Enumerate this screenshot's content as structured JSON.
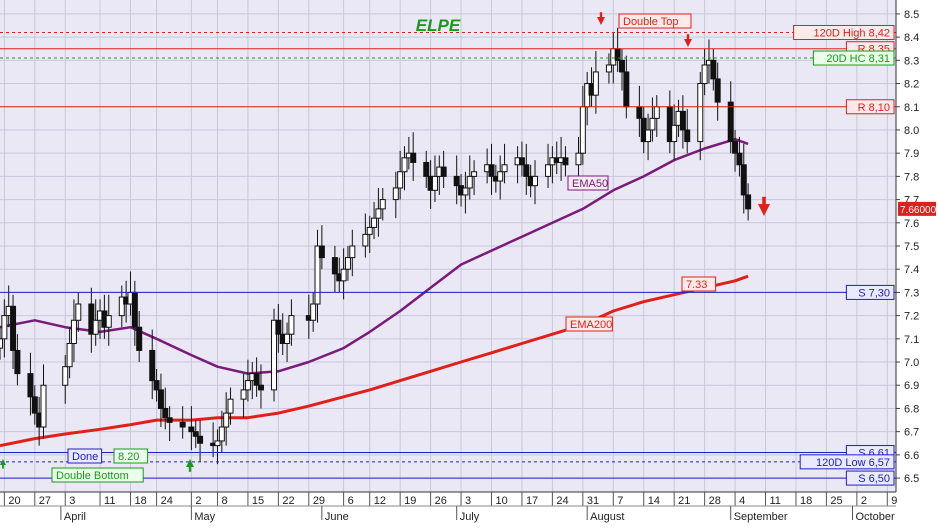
{
  "chart_data": {
    "type": "candlestick",
    "title": "ELPE",
    "ylim": [
      6.44,
      8.56
    ],
    "y_ticks": [
      6.5,
      6.6,
      6.7,
      6.8,
      6.9,
      7.0,
      7.1,
      7.2,
      7.3,
      7.4,
      7.5,
      7.6,
      7.7,
      7.8,
      7.9,
      8.0,
      8.1,
      8.2,
      8.3,
      8.4,
      8.5
    ],
    "y_tick_labels": [
      "6.5",
      "6.6",
      "6.7",
      "6.8",
      "6.9",
      "7.0",
      "7.1",
      "7.2",
      "7.3",
      "7.4",
      "7.5",
      "7.6",
      "7.7",
      "7.8",
      "7.9",
      "8.0",
      "8.1",
      "8.2",
      "8.3",
      "8.4",
      "8.5"
    ],
    "date_ticks": [
      {
        "d": "2018-03-20",
        "label": "20"
      },
      {
        "d": "2018-03-27",
        "label": "27"
      },
      {
        "d": "2018-04-03",
        "label": "3"
      },
      {
        "d": "2018-04-11",
        "label": "11"
      },
      {
        "d": "2018-04-18",
        "label": "18"
      },
      {
        "d": "2018-04-24",
        "label": "24"
      },
      {
        "d": "2018-05-02",
        "label": "2"
      },
      {
        "d": "2018-05-08",
        "label": "8"
      },
      {
        "d": "2018-05-15",
        "label": "15"
      },
      {
        "d": "2018-05-22",
        "label": "22"
      },
      {
        "d": "2018-05-29",
        "label": "29"
      },
      {
        "d": "2018-06-06",
        "label": "6"
      },
      {
        "d": "2018-06-12",
        "label": "12"
      },
      {
        "d": "2018-06-19",
        "label": "19"
      },
      {
        "d": "2018-06-26",
        "label": "26"
      },
      {
        "d": "2018-07-03",
        "label": "3"
      },
      {
        "d": "2018-07-10",
        "label": "10"
      },
      {
        "d": "2018-07-17",
        "label": "17"
      },
      {
        "d": "2018-07-24",
        "label": "24"
      },
      {
        "d": "2018-07-31",
        "label": "31"
      },
      {
        "d": "2018-08-07",
        "label": "7"
      },
      {
        "d": "2018-08-14",
        "label": "14"
      },
      {
        "d": "2018-08-21",
        "label": "21"
      },
      {
        "d": "2018-08-28",
        "label": "28"
      },
      {
        "d": "2018-09-04",
        "label": "4"
      },
      {
        "d": "2018-09-11",
        "label": "11"
      },
      {
        "d": "2018-09-18",
        "label": "18"
      },
      {
        "d": "2018-09-25",
        "label": "25"
      },
      {
        "d": "2018-10-02",
        "label": "2"
      },
      {
        "d": "2018-10-09",
        "label": "9"
      }
    ],
    "month_labels": [
      {
        "d": "2018-04-02",
        "label": "April"
      },
      {
        "d": "2018-05-02",
        "label": "May"
      },
      {
        "d": "2018-06-01",
        "label": "June"
      },
      {
        "d": "2018-07-02",
        "label": "July"
      },
      {
        "d": "2018-08-01",
        "label": "August"
      },
      {
        "d": "2018-09-03",
        "label": "September"
      },
      {
        "d": "2018-10-01",
        "label": "October"
      }
    ],
    "x_start": "2018-03-19",
    "x_end": "2018-10-11",
    "price_label": "7.66000",
    "close": [
      [
        "2018-03-19",
        7.1
      ],
      [
        "2018-03-20",
        7.2
      ],
      [
        "2018-03-21",
        7.24
      ],
      [
        "2018-03-22",
        7.05
      ],
      [
        "2018-03-23",
        6.95
      ],
      [
        "2018-03-26",
        6.85
      ],
      [
        "2018-03-27",
        6.78
      ],
      [
        "2018-03-28",
        6.72
      ],
      [
        "2018-03-29",
        6.9
      ],
      [
        "2018-04-03",
        6.98
      ],
      [
        "2018-04-04",
        7.08
      ],
      [
        "2018-04-05",
        7.18
      ],
      [
        "2018-04-06",
        7.25
      ],
      [
        "2018-04-09",
        7.12
      ],
      [
        "2018-04-10",
        7.18
      ],
      [
        "2018-04-11",
        7.22
      ],
      [
        "2018-04-12",
        7.15
      ],
      [
        "2018-04-13",
        7.2
      ],
      [
        "2018-04-16",
        7.28
      ],
      [
        "2018-04-17",
        7.25
      ],
      [
        "2018-04-18",
        7.3
      ],
      [
        "2018-04-19",
        7.15
      ],
      [
        "2018-04-20",
        7.05
      ],
      [
        "2018-04-23",
        6.92
      ],
      [
        "2018-04-24",
        6.88
      ],
      [
        "2018-04-25",
        6.8
      ],
      [
        "2018-04-26",
        6.76
      ],
      [
        "2018-04-27",
        6.74
      ],
      [
        "2018-04-30",
        6.72
      ],
      [
        "2018-05-02",
        6.7
      ],
      [
        "2018-05-03",
        6.68
      ],
      [
        "2018-05-04",
        6.65
      ],
      [
        "2018-05-07",
        6.64
      ],
      [
        "2018-05-08",
        6.66
      ],
      [
        "2018-05-09",
        6.72
      ],
      [
        "2018-05-10",
        6.78
      ],
      [
        "2018-05-11",
        6.84
      ],
      [
        "2018-05-14",
        6.88
      ],
      [
        "2018-05-15",
        6.92
      ],
      [
        "2018-05-16",
        6.95
      ],
      [
        "2018-05-17",
        6.9
      ],
      [
        "2018-05-18",
        6.88
      ],
      [
        "2018-05-21",
        7.18
      ],
      [
        "2018-05-22",
        7.12
      ],
      [
        "2018-05-23",
        7.08
      ],
      [
        "2018-05-24",
        7.12
      ],
      [
        "2018-05-25",
        7.2
      ],
      [
        "2018-05-29",
        7.18
      ],
      [
        "2018-05-30",
        7.25
      ],
      [
        "2018-05-31",
        7.5
      ],
      [
        "2018-06-01",
        7.45
      ],
      [
        "2018-06-04",
        7.38
      ],
      [
        "2018-06-05",
        7.35
      ],
      [
        "2018-06-06",
        7.4
      ],
      [
        "2018-06-07",
        7.45
      ],
      [
        "2018-06-08",
        7.5
      ],
      [
        "2018-06-11",
        7.55
      ],
      [
        "2018-06-12",
        7.58
      ],
      [
        "2018-06-13",
        7.62
      ],
      [
        "2018-06-14",
        7.66
      ],
      [
        "2018-06-15",
        7.7
      ],
      [
        "2018-06-18",
        7.75
      ],
      [
        "2018-06-19",
        7.82
      ],
      [
        "2018-06-20",
        7.88
      ],
      [
        "2018-06-21",
        7.9
      ],
      [
        "2018-06-22",
        7.86
      ],
      [
        "2018-06-25",
        7.8
      ],
      [
        "2018-06-26",
        7.74
      ],
      [
        "2018-06-27",
        7.8
      ],
      [
        "2018-06-28",
        7.84
      ],
      [
        "2018-06-29",
        7.8
      ],
      [
        "2018-07-02",
        7.76
      ],
      [
        "2018-07-03",
        7.72
      ],
      [
        "2018-07-04",
        7.75
      ],
      [
        "2018-07-05",
        7.8
      ],
      [
        "2018-07-06",
        7.82
      ],
      [
        "2018-07-09",
        7.85
      ],
      [
        "2018-07-10",
        7.8
      ],
      [
        "2018-07-11",
        7.78
      ],
      [
        "2018-07-12",
        7.82
      ],
      [
        "2018-07-13",
        7.85
      ],
      [
        "2018-07-16",
        7.88
      ],
      [
        "2018-07-17",
        7.85
      ],
      [
        "2018-07-18",
        7.8
      ],
      [
        "2018-07-19",
        7.76
      ],
      [
        "2018-07-20",
        7.8
      ],
      [
        "2018-07-23",
        7.85
      ],
      [
        "2018-07-24",
        7.88
      ],
      [
        "2018-07-25",
        7.86
      ],
      [
        "2018-07-26",
        7.88
      ],
      [
        "2018-07-27",
        7.85
      ],
      [
        "2018-07-30",
        7.9
      ],
      [
        "2018-07-31",
        8.1
      ],
      [
        "2018-08-01",
        8.2
      ],
      [
        "2018-08-02",
        8.15
      ],
      [
        "2018-08-03",
        8.25
      ],
      [
        "2018-08-06",
        8.28
      ],
      [
        "2018-08-07",
        8.35
      ],
      [
        "2018-08-08",
        8.3
      ],
      [
        "2018-08-09",
        8.25
      ],
      [
        "2018-08-10",
        8.1
      ],
      [
        "2018-08-13",
        8.05
      ],
      [
        "2018-08-14",
        7.95
      ],
      [
        "2018-08-15",
        8.0
      ],
      [
        "2018-08-16",
        8.05
      ],
      [
        "2018-08-17",
        8.1
      ],
      [
        "2018-08-20",
        7.95
      ],
      [
        "2018-08-21",
        8.02
      ],
      [
        "2018-08-22",
        8.08
      ],
      [
        "2018-08-23",
        8.0
      ],
      [
        "2018-08-24",
        7.95
      ],
      [
        "2018-08-27",
        8.2
      ],
      [
        "2018-08-28",
        8.28
      ],
      [
        "2018-08-29",
        8.3
      ],
      [
        "2018-08-30",
        8.22
      ],
      [
        "2018-08-31",
        8.12
      ],
      [
        "2018-09-03",
        7.95
      ],
      [
        "2018-09-04",
        7.9
      ],
      [
        "2018-09-05",
        7.85
      ],
      [
        "2018-09-06",
        7.72
      ],
      [
        "2018-09-07",
        7.66
      ]
    ],
    "ema50": [
      [
        "2018-03-19",
        7.15
      ],
      [
        "2018-03-27",
        7.18
      ],
      [
        "2018-04-03",
        7.15
      ],
      [
        "2018-04-11",
        7.13
      ],
      [
        "2018-04-18",
        7.15
      ],
      [
        "2018-04-24",
        7.1
      ],
      [
        "2018-05-02",
        7.03
      ],
      [
        "2018-05-08",
        6.98
      ],
      [
        "2018-05-15",
        6.95
      ],
      [
        "2018-05-22",
        6.96
      ],
      [
        "2018-05-29",
        7.0
      ],
      [
        "2018-06-06",
        7.06
      ],
      [
        "2018-06-12",
        7.13
      ],
      [
        "2018-06-19",
        7.22
      ],
      [
        "2018-06-26",
        7.32
      ],
      [
        "2018-07-03",
        7.42
      ],
      [
        "2018-07-10",
        7.48
      ],
      [
        "2018-07-17",
        7.54
      ],
      [
        "2018-07-24",
        7.6
      ],
      [
        "2018-07-31",
        7.66
      ],
      [
        "2018-08-07",
        7.74
      ],
      [
        "2018-08-14",
        7.8
      ],
      [
        "2018-08-21",
        7.87
      ],
      [
        "2018-08-28",
        7.92
      ],
      [
        "2018-09-04",
        7.96
      ],
      [
        "2018-09-07",
        7.94
      ]
    ],
    "ema200": [
      [
        "2018-03-19",
        6.64
      ],
      [
        "2018-03-27",
        6.67
      ],
      [
        "2018-04-03",
        6.69
      ],
      [
        "2018-04-11",
        6.71
      ],
      [
        "2018-04-18",
        6.73
      ],
      [
        "2018-04-24",
        6.75
      ],
      [
        "2018-05-02",
        6.75
      ],
      [
        "2018-05-08",
        6.76
      ],
      [
        "2018-05-15",
        6.76
      ],
      [
        "2018-05-22",
        6.78
      ],
      [
        "2018-05-29",
        6.81
      ],
      [
        "2018-06-06",
        6.85
      ],
      [
        "2018-06-12",
        6.88
      ],
      [
        "2018-06-19",
        6.92
      ],
      [
        "2018-06-26",
        6.96
      ],
      [
        "2018-07-03",
        7.0
      ],
      [
        "2018-07-10",
        7.04
      ],
      [
        "2018-07-17",
        7.08
      ],
      [
        "2018-07-24",
        7.12
      ],
      [
        "2018-07-31",
        7.16
      ],
      [
        "2018-08-07",
        7.22
      ],
      [
        "2018-08-14",
        7.26
      ],
      [
        "2018-08-21",
        7.29
      ],
      [
        "2018-08-28",
        7.32
      ],
      [
        "2018-09-04",
        7.35
      ],
      [
        "2018-09-07",
        7.37
      ]
    ],
    "hlines": [
      {
        "y": 8.42,
        "label": "120D High 8,42",
        "color": "#e0201a",
        "dash": true,
        "fill": "#ffeaea"
      },
      {
        "y": 8.35,
        "label": "R 8,35",
        "color": "#e0201a",
        "dash": false,
        "fill": "#ffeaea"
      },
      {
        "y": 8.31,
        "label": "20D HC 8,31",
        "color": "#1a9a1a",
        "dash": true,
        "fill": "#eaffea"
      },
      {
        "y": 8.1,
        "label": "R 8,10",
        "color": "#e0201a",
        "dash": false,
        "fill": "#ffeaea"
      },
      {
        "y": 7.3,
        "label": "S 7,30",
        "color": "#2020c0",
        "dash": false,
        "fill": "#eaeaff"
      },
      {
        "y": 6.61,
        "label": "S 6,61",
        "color": "#2020c0",
        "dash": false,
        "fill": "#eaeaff"
      },
      {
        "y": 6.57,
        "label": "120D Low 6,57",
        "color": "#2020c0",
        "dash": true,
        "fill": "#eaeaff"
      },
      {
        "y": 6.5,
        "label": "S 6,50",
        "color": "#2020c0",
        "dash": false,
        "fill": "#eaeaff"
      }
    ],
    "annotations": {
      "double_top": "Double Top",
      "double_bottom": "Double Bottom",
      "done": "Done",
      "done_value": "8.20",
      "ema50_label": "EMA50",
      "ema200_label": "EMA200",
      "target_label": "7.33"
    },
    "colors": {
      "background": "#ffffff",
      "plot_bg": "#e9e8f4",
      "candle": "#111111",
      "ema50": "#7a1a7a",
      "ema200": "#e0201a",
      "title": "#1a9a1a"
    }
  }
}
